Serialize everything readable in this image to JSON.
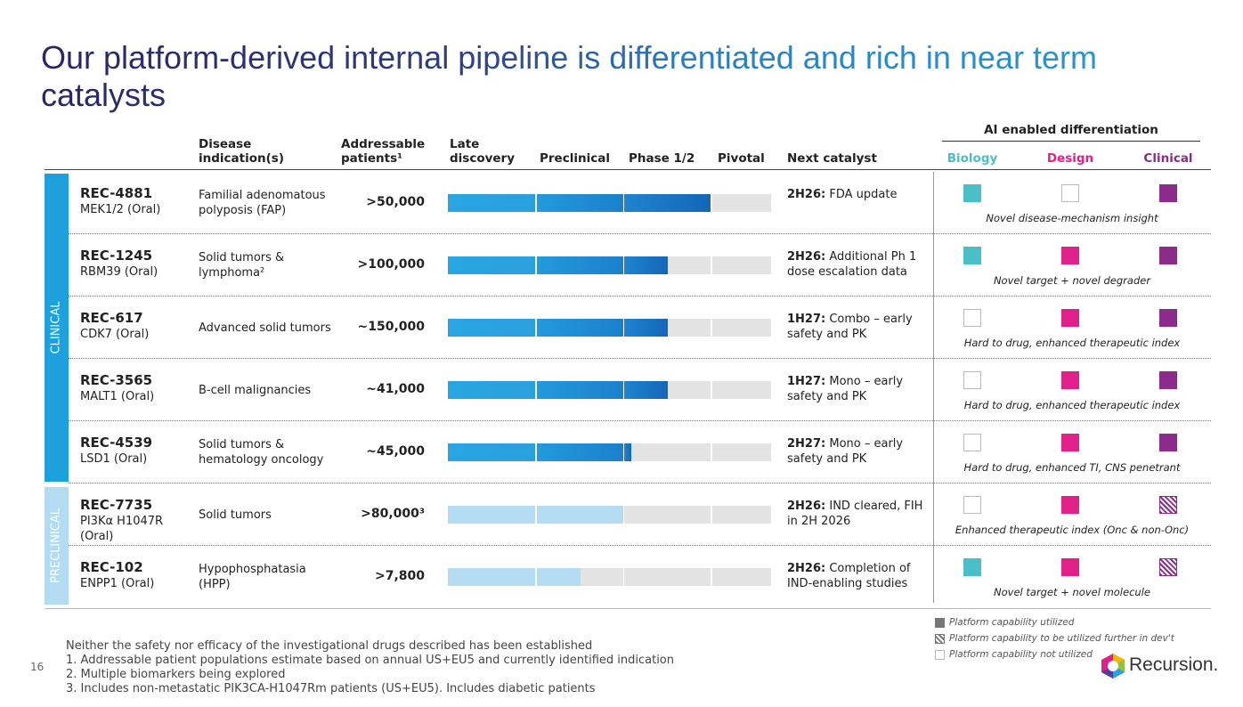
{
  "title": "Our platform-derived internal pipeline is differentiated and rich in near term catalysts",
  "columns": {
    "disease": "Disease indication(s)",
    "patients": "Addressable patients¹",
    "stages": [
      "Late discovery",
      "Preclinical",
      "Phase 1/2",
      "Pivotal"
    ],
    "catalyst": "Next catalyst",
    "ai_header": "AI enabled differentiation",
    "ai": [
      "Biology",
      "Design",
      "Clinical"
    ]
  },
  "groups": [
    "CLINICAL",
    "PRECLINICAL"
  ],
  "rows": [
    {
      "name": "REC-4881",
      "target": "MEK1/2 (Oral)",
      "indication": "Familial adenomatous polyposis (FAP)",
      "patients": ">50,000",
      "progress": 3.0,
      "group": 0,
      "catalyst_bold": "2H26:",
      "catalyst": "FDA update",
      "ai": [
        0,
        2,
        0
      ],
      "ai_note": "Novel disease-mechanism insight"
    },
    {
      "name": "REC-1245",
      "target": "RBM39 (Oral)",
      "indication": "Solid tumors & lymphoma²",
      "patients": ">100,000",
      "progress": 2.5,
      "group": 0,
      "catalyst_bold": "2H26:",
      "catalyst": "Additional Ph 1 dose escalation data",
      "ai": [
        0,
        0,
        0
      ],
      "ai_note": "Novel target + novel degrader"
    },
    {
      "name": "REC-617",
      "target": "CDK7 (Oral)",
      "indication": "Advanced solid tumors",
      "patients": "~150,000",
      "progress": 2.5,
      "group": 0,
      "catalyst_bold": "1H27:",
      "catalyst": "Combo – early safety and PK",
      "ai": [
        2,
        0,
        0
      ],
      "ai_note": "Hard to drug, enhanced therapeutic index"
    },
    {
      "name": "REC-3565",
      "target": "MALT1 (Oral)",
      "indication": "B-cell malignancies",
      "patients": "~41,000",
      "progress": 2.5,
      "group": 0,
      "catalyst_bold": "1H27:",
      "catalyst": "Mono – early safety and PK",
      "ai": [
        2,
        0,
        0
      ],
      "ai_note": "Hard to drug, enhanced therapeutic index"
    },
    {
      "name": "REC-4539",
      "target": "LSD1 (Oral)",
      "indication": "Solid tumors & hematology oncology",
      "patients": "~45,000",
      "progress": 2.08,
      "group": 0,
      "catalyst_bold": "2H27:",
      "catalyst": "Mono – early safety and PK",
      "ai": [
        2,
        0,
        0
      ],
      "ai_note": "Hard to drug, enhanced TI, CNS penetrant"
    },
    {
      "name": "REC-7735",
      "target": "PI3Kα H1047R (Oral)",
      "indication": "Solid tumors",
      "patients": ">80,000³",
      "progress": 2.0,
      "group": 1,
      "catalyst_bold": "2H26:",
      "catalyst": "IND cleared, FIH in 2H 2026",
      "ai": [
        2,
        0,
        1
      ],
      "ai_note": "Enhanced therapeutic index (Onc & non-Onc)"
    },
    {
      "name": "REC-102",
      "target": "ENPP1 (Oral)",
      "indication": "Hypophosphatasia (HPP)",
      "patients": ">7,800",
      "progress": 1.5,
      "group": 1,
      "catalyst_bold": "2H26:",
      "catalyst": "Completion of IND-enabling studies",
      "ai": [
        0,
        0,
        1
      ],
      "ai_note": "Novel target + novel molecule"
    }
  ],
  "legend": [
    "Platform capability utilized",
    "Platform capability to be utilized further in dev't",
    "Platform capability not utilized"
  ],
  "footnotes": [
    "Neither the safety nor efficacy of the investigational drugs described has been established",
    "1.   Addressable patient populations estimate based on annual US+EU5 and currently identified indication",
    "2.   Multiple biomarkers being explored",
    "3.   Includes non-metastatic PIK3CA-H1047Rm patients (US+EU5). Includes diabetic patients"
  ],
  "page_number": "16",
  "logo": "Recursion."
}
